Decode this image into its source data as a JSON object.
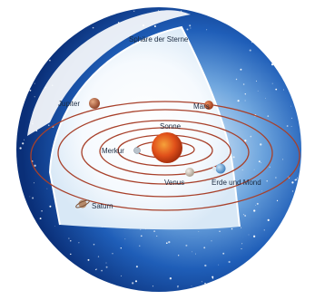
{
  "labels": {
    "sphere": "Sphäre der Sterne",
    "sun": "Sonne",
    "mercury": "Merkur",
    "venus": "Venus",
    "earth_moon": "Erde und Mond",
    "mars": "Mars",
    "jupiter": "Jupiter",
    "saturn": "Saturn"
  },
  "colors": {
    "sky_dark": "#0a2f78",
    "sky_mid": "#1f5eb8",
    "sky_light": "#9cc8ef",
    "orbit": "#a8402a",
    "sun": "#e0501a",
    "label_dark": "#1a2a40",
    "label_light": "#ffffff"
  }
}
